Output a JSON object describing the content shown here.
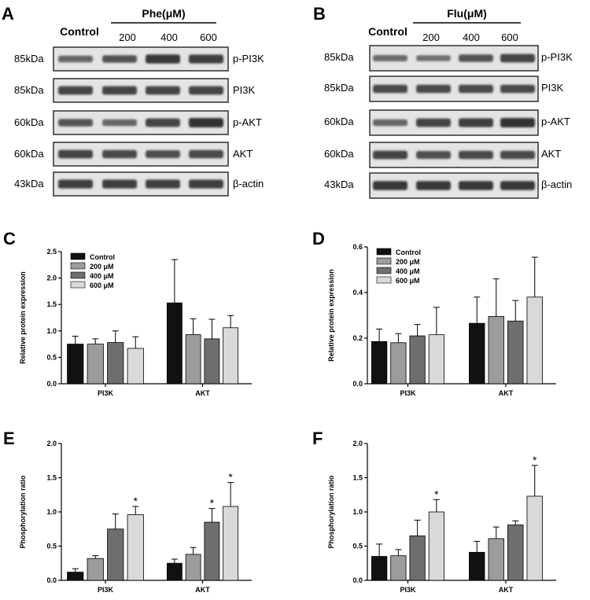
{
  "colors": {
    "series": [
      "#111111",
      "#9c9c9c",
      "#6e6e6e",
      "#d9d9d9"
    ],
    "blot_bg": "#e4e4e4",
    "band": "#2a2a2a"
  },
  "blots": [
    {
      "panel": "A",
      "control_label": "Control",
      "group_label": "Phe(μM)",
      "doses": [
        "200",
        "400",
        "600"
      ],
      "rows": [
        {
          "kda": "85kDa",
          "name": "p-PI3K",
          "band_strength": [
            0.55,
            0.7,
            0.95,
            0.9
          ]
        },
        {
          "kda": "85kDa",
          "name": "PI3K",
          "band_strength": [
            0.85,
            0.85,
            0.85,
            0.85
          ]
        },
        {
          "kda": "60kDa",
          "name": "p-AKT",
          "band_strength": [
            0.7,
            0.55,
            0.85,
            1.0
          ]
        },
        {
          "kda": "60kDa",
          "name": "AKT",
          "band_strength": [
            0.85,
            0.8,
            0.75,
            0.8
          ]
        },
        {
          "kda": "43kDa",
          "name": "β-actin",
          "band_strength": [
            0.9,
            0.9,
            0.9,
            0.9
          ]
        }
      ]
    },
    {
      "panel": "B",
      "control_label": "Control",
      "group_label": "Flu(μM)",
      "doses": [
        "200",
        "400",
        "600"
      ],
      "rows": [
        {
          "kda": "85kDa",
          "name": "p-PI3K",
          "band_strength": [
            0.5,
            0.45,
            0.7,
            0.85
          ]
        },
        {
          "kda": "85kDa",
          "name": "PI3K",
          "band_strength": [
            0.8,
            0.8,
            0.8,
            0.8
          ]
        },
        {
          "kda": "60kDa",
          "name": "p-AKT",
          "band_strength": [
            0.55,
            0.85,
            0.9,
            1.0
          ]
        },
        {
          "kda": "60kDa",
          "name": "AKT",
          "band_strength": [
            0.85,
            0.75,
            0.8,
            0.8
          ]
        },
        {
          "kda": "43kDa",
          "name": "β-actin",
          "band_strength": [
            0.95,
            0.95,
            0.95,
            0.95
          ]
        }
      ]
    }
  ],
  "chart_data": [
    {
      "panel": "C",
      "type": "bar",
      "ylabel": "Relative protein expression",
      "ylim": [
        0,
        2.5
      ],
      "yticks": [
        "0.0",
        "0.5",
        "1.0",
        "1.5",
        "2.0",
        "2.5"
      ],
      "categories": [
        "PI3K",
        "AKT"
      ],
      "legend": "top-left",
      "series": [
        {
          "name": "Control",
          "values": [
            0.75,
            1.53
          ],
          "errors": [
            0.15,
            0.82
          ]
        },
        {
          "name": "200 μM",
          "values": [
            0.75,
            0.93
          ],
          "errors": [
            0.1,
            0.3
          ]
        },
        {
          "name": "400 μM",
          "values": [
            0.78,
            0.85
          ],
          "errors": [
            0.22,
            0.37
          ]
        },
        {
          "name": "600 μM",
          "values": [
            0.67,
            1.06
          ],
          "errors": [
            0.22,
            0.23
          ]
        }
      ],
      "stars": [
        [
          false,
          false
        ],
        [
          false,
          false
        ],
        [
          false,
          false
        ],
        [
          false,
          false
        ]
      ]
    },
    {
      "panel": "D",
      "type": "bar",
      "ylabel": "Relative protein expression",
      "ylim": [
        0,
        0.6
      ],
      "yticks": [
        "0.0",
        "0.2",
        "0.4",
        "0.6"
      ],
      "categories": [
        "PI3K",
        "AKT"
      ],
      "legend": "top-left",
      "series": [
        {
          "name": "Control",
          "values": [
            0.185,
            0.265
          ],
          "errors": [
            0.055,
            0.115
          ]
        },
        {
          "name": "200 μM",
          "values": [
            0.18,
            0.295
          ],
          "errors": [
            0.04,
            0.165
          ]
        },
        {
          "name": "400 μM",
          "values": [
            0.21,
            0.275
          ],
          "errors": [
            0.05,
            0.09
          ]
        },
        {
          "name": "600 μM",
          "values": [
            0.215,
            0.38
          ],
          "errors": [
            0.12,
            0.175
          ]
        }
      ],
      "stars": [
        [
          false,
          false
        ],
        [
          false,
          false
        ],
        [
          false,
          false
        ],
        [
          false,
          false
        ]
      ]
    },
    {
      "panel": "E",
      "type": "bar",
      "ylabel": "Phosphorylation ratio",
      "ylim": [
        0,
        2.0
      ],
      "yticks": [
        "0.0",
        "0.5",
        "1.0",
        "1.5",
        "2.0"
      ],
      "categories": [
        "PI3K",
        "AKT"
      ],
      "series": [
        {
          "name": "Control",
          "values": [
            0.12,
            0.25
          ],
          "errors": [
            0.05,
            0.06
          ]
        },
        {
          "name": "200 μM",
          "values": [
            0.32,
            0.38
          ],
          "errors": [
            0.04,
            0.1
          ]
        },
        {
          "name": "400 μM",
          "values": [
            0.75,
            0.85
          ],
          "errors": [
            0.22,
            0.2
          ]
        },
        {
          "name": "600 μM",
          "values": [
            0.96,
            1.08
          ],
          "errors": [
            0.12,
            0.35
          ]
        }
      ],
      "stars": [
        [
          false,
          false
        ],
        [
          false,
          false
        ],
        [
          false,
          true
        ],
        [
          true,
          true
        ]
      ]
    },
    {
      "panel": "F",
      "type": "bar",
      "ylabel": "Phosphorylation ratio",
      "ylim": [
        0,
        2.0
      ],
      "yticks": [
        "0.0",
        "0.5",
        "1.0",
        "1.5",
        "2.0"
      ],
      "categories": [
        "PI3K",
        "AKT"
      ],
      "series": [
        {
          "name": "Control",
          "values": [
            0.35,
            0.41
          ],
          "errors": [
            0.18,
            0.16
          ]
        },
        {
          "name": "200 μM",
          "values": [
            0.36,
            0.61
          ],
          "errors": [
            0.09,
            0.17
          ]
        },
        {
          "name": "400 μM",
          "values": [
            0.65,
            0.81
          ],
          "errors": [
            0.23,
            0.06
          ]
        },
        {
          "name": "600 μM",
          "values": [
            1.0,
            1.23
          ],
          "errors": [
            0.18,
            0.45
          ]
        }
      ],
      "stars": [
        [
          false,
          false
        ],
        [
          false,
          false
        ],
        [
          false,
          false
        ],
        [
          true,
          true
        ]
      ]
    }
  ]
}
